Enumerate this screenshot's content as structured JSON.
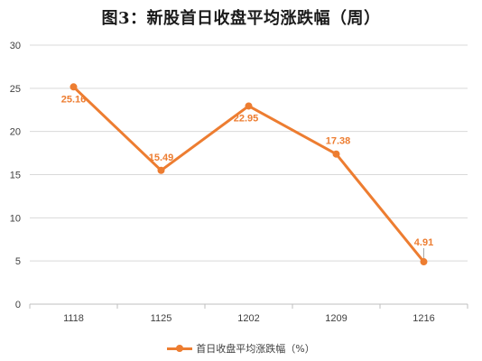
{
  "chart_data": {
    "type": "line",
    "title": "图3：新股首日收盘平均涨跌幅（周）",
    "categories": [
      "1118",
      "1125",
      "1202",
      "1209",
      "1216"
    ],
    "series": [
      {
        "name": "首日收盘平均涨跌幅（%）",
        "values": [
          25.16,
          15.49,
          22.95,
          17.38,
          4.91
        ],
        "color": "#ED7D31",
        "data_labels": [
          "25.16",
          "15.49",
          "22.95",
          "17.38",
          "4.91"
        ]
      }
    ],
    "yticks": [
      "0",
      "5",
      "10",
      "15",
      "20",
      "25",
      "30"
    ],
    "ylim": [
      0,
      30
    ],
    "grid": true,
    "legend_position": "bottom"
  }
}
